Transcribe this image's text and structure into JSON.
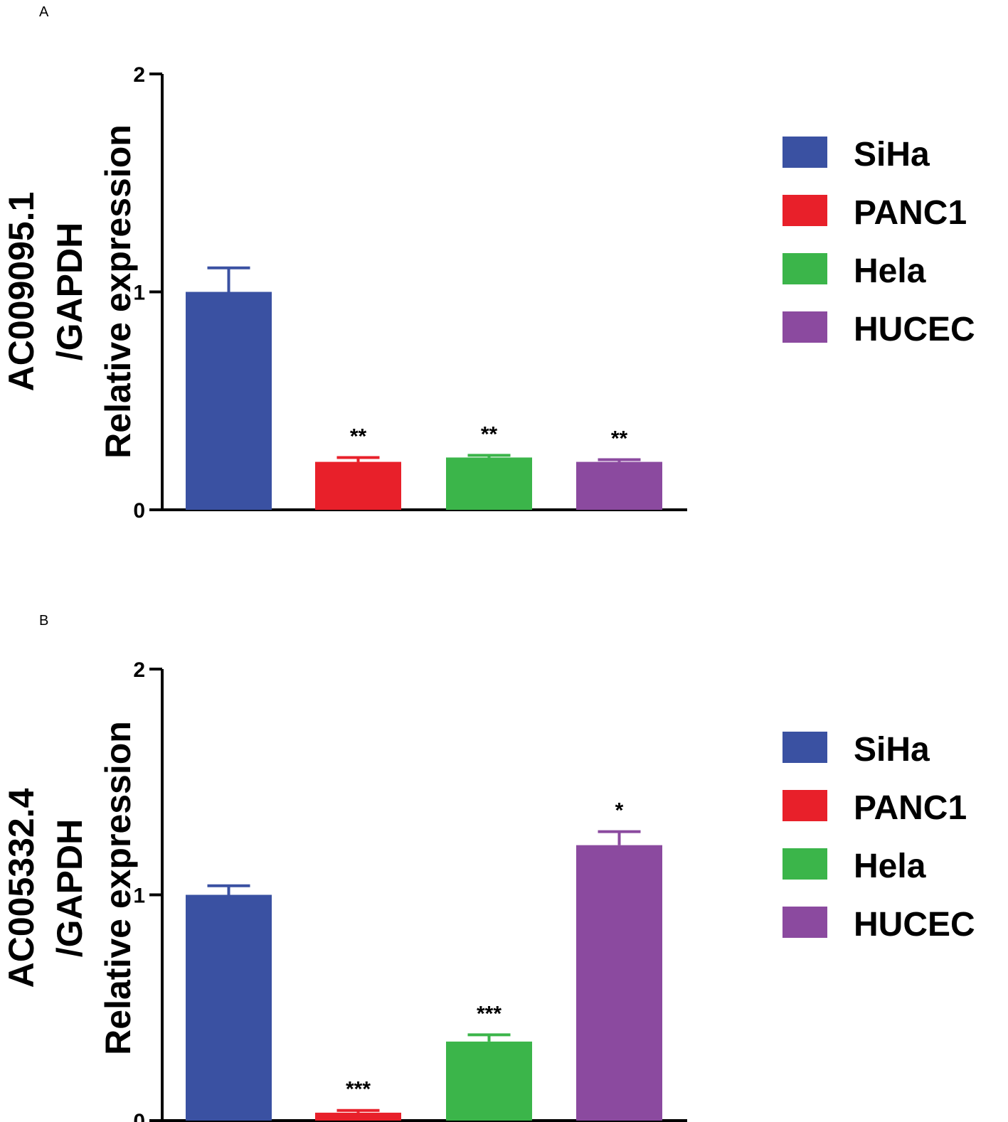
{
  "chart_data": [
    {
      "type": "bar",
      "panel": "A",
      "ylabel_line1": "AC009095.1",
      "ylabel_line2": "/GAPDH",
      "ylabel_line3": "Relative expression",
      "ylim": [
        0,
        2
      ],
      "yticks": [
        "0",
        "1",
        "2"
      ],
      "categories": [
        "SiHa",
        "PANC1",
        "Hela",
        "HUCEC"
      ],
      "values": [
        1.0,
        0.22,
        0.24,
        0.22
      ],
      "errors": [
        0.11,
        0.02,
        0.01,
        0.01
      ],
      "significance": [
        "",
        "**",
        "**",
        "**"
      ],
      "colors": [
        "#3a51a2",
        "#e8202a",
        "#3bb54a",
        "#8b4a9f"
      ],
      "legend": [
        "SiHa",
        "PANC1",
        "Hela",
        "HUCEC"
      ]
    },
    {
      "type": "bar",
      "panel": "B",
      "ylabel_line1": "AC005332.4",
      "ylabel_line2": "/GAPDH",
      "ylabel_line3": "Relative expression",
      "ylim": [
        0,
        2
      ],
      "yticks": [
        "0",
        "1",
        "2"
      ],
      "categories": [
        "SiHa",
        "PANC1",
        "Hela",
        "HUCEC"
      ],
      "values": [
        1.0,
        0.035,
        0.35,
        1.22
      ],
      "errors": [
        0.04,
        0.01,
        0.03,
        0.06
      ],
      "significance": [
        "",
        "***",
        "***",
        "*"
      ],
      "colors": [
        "#3a51a2",
        "#e8202a",
        "#3bb54a",
        "#8b4a9f"
      ],
      "legend": [
        "SiHa",
        "PANC1",
        "Hela",
        "HUCEC"
      ]
    }
  ]
}
